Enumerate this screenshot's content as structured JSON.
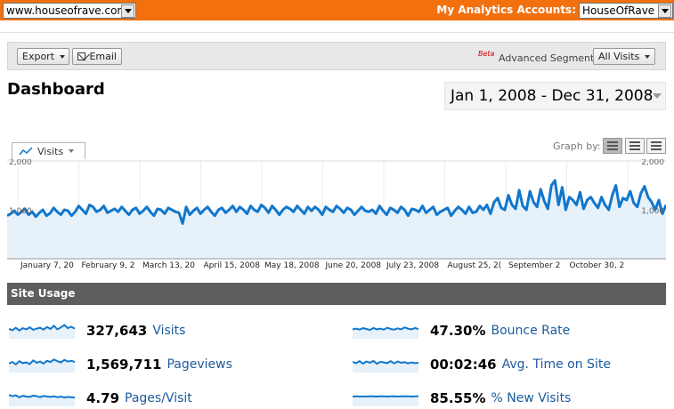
{
  "header": {
    "site": "www.houseofrave.com",
    "accounts_label": "My Analytics Accounts:",
    "account": "HouseOfRave"
  },
  "toolbar": {
    "export_label": "Export",
    "email_label": "Email",
    "beta_label": "Beta",
    "segments_label": "Advanced Segments:",
    "segment_value": "All Visits"
  },
  "page": {
    "title": "Dashboard",
    "date_range": "Jan 1, 2008 - Dec 31, 2008"
  },
  "graph": {
    "metric": "Visits",
    "graph_by_label": "Graph by:",
    "graph_by_options": [
      "day",
      "week",
      "month"
    ],
    "graph_by_selected": "day"
  },
  "chart_data": {
    "type": "area",
    "title": "",
    "xlabel": "",
    "ylabel": "",
    "ylim": [
      0,
      2000
    ],
    "y_ticks_left": [
      "2,000",
      "1,000"
    ],
    "y_ticks_right": [
      "2,000",
      "1,000"
    ],
    "x_tick_labels": [
      "January 7, 20",
      "February 9, 2",
      "March 13, 20",
      "April 15, 2008",
      "May 18, 2008",
      "June 20, 2008",
      "July 23, 2008",
      "August 25, 2(",
      "September 2",
      "October 30, 2"
    ],
    "grid": true,
    "line_color": "#1177cc",
    "fill_color": "#e6f1fa",
    "series": [
      {
        "name": "Visits",
        "values": [
          880,
          920,
          980,
          900,
          960,
          1020,
          900,
          960,
          860,
          940,
          1000,
          880,
          930,
          1040,
          960,
          900,
          1000,
          980,
          880,
          960,
          1080,
          1000,
          920,
          1100,
          1060,
          960,
          1000,
          1080,
          940,
          980,
          1020,
          960,
          1060,
          980,
          900,
          1000,
          1040,
          920,
          980,
          1060,
          960,
          880,
          1020,
          1000,
          920,
          1040,
          1000,
          960,
          940,
          720,
          1060,
          900,
          980,
          1040,
          920,
          1000,
          1060,
          960,
          880,
          1000,
          1040,
          940,
          1000,
          1080,
          960,
          1060,
          1000,
          920,
          1080,
          1000,
          960,
          1100,
          1040,
          940,
          1080,
          1000,
          900,
          1000,
          1060,
          1020,
          960,
          1080,
          1000,
          920,
          1060,
          980,
          1060,
          1000,
          900,
          1060,
          1000,
          960,
          1080,
          1020,
          940,
          1040,
          1000,
          900,
          980,
          1060,
          980,
          960,
          1000,
          920,
          1080,
          980,
          900,
          1040,
          1000,
          940,
          1060,
          1000,
          880,
          1020,
          1000,
          960,
          1080,
          940,
          1000,
          1060,
          900,
          960,
          1000,
          1040,
          880,
          980,
          1060,
          1000,
          920,
          1060,
          940,
          960,
          1080,
          1000,
          1100,
          920,
          1160,
          1240,
          1040,
          1000,
          1300,
          1100,
          1020,
          1400,
          1080,
          1000,
          1380,
          1160,
          1060,
          1420,
          1180,
          1020,
          1500,
          1600,
          1100,
          1460,
          1000,
          1260,
          1200,
          1100,
          1360,
          1020,
          1200,
          1260,
          1140,
          1040,
          1260,
          1100,
          1000,
          1300,
          1500,
          1060,
          1240,
          1200,
          1380,
          1140,
          1060,
          1340,
          1480,
          1260,
          1160,
          1000,
          1200,
          920,
          1100
        ]
      }
    ]
  },
  "site_usage": {
    "title": "Site Usage",
    "metrics": [
      {
        "value": "327,643",
        "label": "Visits",
        "spark": [
          50,
          42,
          58,
          40,
          55,
          48,
          60,
          45,
          52,
          58,
          46,
          62,
          50,
          70,
          48,
          60,
          75,
          55,
          64,
          52
        ]
      },
      {
        "value": "1,569,711",
        "label": "Pageviews",
        "spark": [
          45,
          55,
          40,
          60,
          48,
          52,
          42,
          65,
          50,
          58,
          45,
          62,
          55,
          70,
          60,
          52,
          68,
          58,
          62,
          55
        ]
      },
      {
        "value": "4.79",
        "label": "Pages/Visit",
        "spark": [
          60,
          52,
          58,
          45,
          55,
          50,
          48,
          56,
          52,
          46,
          54,
          50,
          48,
          52,
          46,
          50,
          44,
          48,
          46,
          44
        ]
      },
      {
        "value": "47.30%",
        "label": "Bounce Rate",
        "spark": [
          48,
          52,
          46,
          55,
          50,
          44,
          56,
          48,
          52,
          46,
          58,
          50,
          46,
          54,
          48,
          60,
          52,
          48,
          56,
          50
        ]
      },
      {
        "value": "00:02:46",
        "label": "Avg. Time on Site",
        "spark": [
          55,
          48,
          60,
          45,
          58,
          50,
          62,
          44,
          56,
          52,
          48,
          60,
          46,
          58,
          50,
          54,
          46,
          52,
          48,
          50
        ]
      },
      {
        "value": "85.55%",
        "label": "% New Visits",
        "spark": [
          50,
          52,
          50,
          51,
          50,
          52,
          51,
          50,
          52,
          51,
          50,
          51,
          52,
          50,
          51,
          52,
          51,
          50,
          51,
          52
        ]
      }
    ]
  }
}
